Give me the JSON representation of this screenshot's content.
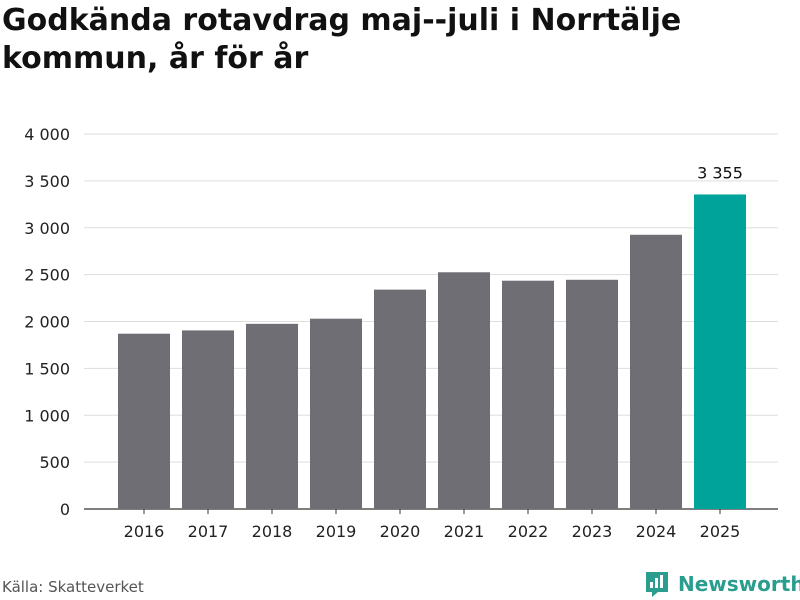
{
  "title": "Godkända rotavdrag maj--juli i Norrtälje kommun, år för år",
  "source": "Källa: Skatteverket",
  "brand": {
    "name": "Newsworthy",
    "icon": "newsworthy-logo-icon"
  },
  "colors": {
    "bar": "#6f6e75",
    "highlight": "#00a399",
    "grid": "#dddddd",
    "brand": "#2a9d8f"
  },
  "chart_data": {
    "type": "bar",
    "title": "Godkända rotavdrag maj--juli i Norrtälje kommun, år för år",
    "xlabel": "",
    "ylabel": "",
    "categories": [
      "2016",
      "2017",
      "2018",
      "2019",
      "2020",
      "2021",
      "2022",
      "2023",
      "2024",
      "2025"
    ],
    "values": [
      1870,
      1905,
      1975,
      2030,
      2340,
      2525,
      2435,
      2445,
      2925,
      3355
    ],
    "highlight_index": 9,
    "highlight_label": "3 355",
    "ylim": [
      0,
      4000
    ],
    "yticks": [
      0,
      500,
      1000,
      1500,
      2000,
      2500,
      3000,
      3500,
      4000
    ],
    "ytick_labels": [
      "0",
      "500",
      "1 000",
      "1 500",
      "2 000",
      "2 500",
      "3 000",
      "3 500",
      "4 000"
    ],
    "grid": true,
    "legend": "none"
  }
}
